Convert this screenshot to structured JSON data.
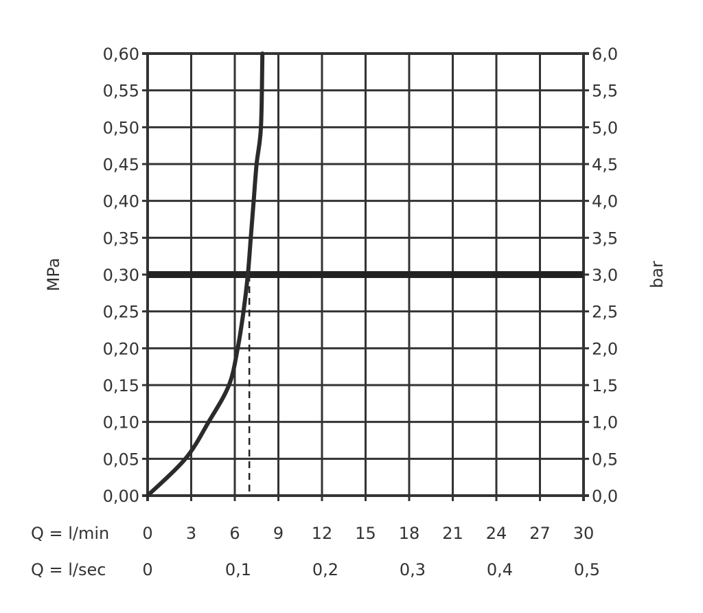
{
  "chart_data": {
    "type": "line",
    "title": "",
    "ylabel_left": "MPa",
    "ylabel_right": "bar",
    "x_row_labels": [
      "Q = l/min",
      "Q = l/sec"
    ],
    "xlim": [
      0,
      30
    ],
    "ylim": [
      0,
      0.6
    ],
    "grid": true,
    "x_ticks_lmin": [
      "0",
      "3",
      "6",
      "9",
      "12",
      "15",
      "18",
      "21",
      "24",
      "27",
      "30"
    ],
    "x_ticks_lsec": [
      "0",
      "0,1",
      "0,2",
      "0,3",
      "0,4",
      "0,5"
    ],
    "y_ticks_left": [
      "0,00",
      "0,05",
      "0,10",
      "0,15",
      "0,20",
      "0,25",
      "0,30",
      "0,35",
      "0,40",
      "0,45",
      "0,50",
      "0,55",
      "0,60"
    ],
    "y_ticks_right": [
      "0,0",
      "0,5",
      "1,0",
      "1,5",
      "2,0",
      "2,5",
      "3,0",
      "3,5",
      "4,0",
      "4,5",
      "5,0",
      "5,5",
      "6,0"
    ],
    "series": [
      {
        "x": [
          0,
          2.6,
          4.2,
          5.6,
          6.2,
          6.6,
          6.9,
          7.1,
          7.3,
          7.5,
          7.8,
          7.9
        ],
        "y": [
          0,
          0.05,
          0.1,
          0.15,
          0.2,
          0.25,
          0.3,
          0.35,
          0.4,
          0.45,
          0.5,
          0.6
        ]
      }
    ],
    "reference_line_y": 0.3,
    "reference_drop_x": 7.0,
    "colors": {
      "line": "#2b2b2b",
      "grid": "#333333"
    }
  }
}
